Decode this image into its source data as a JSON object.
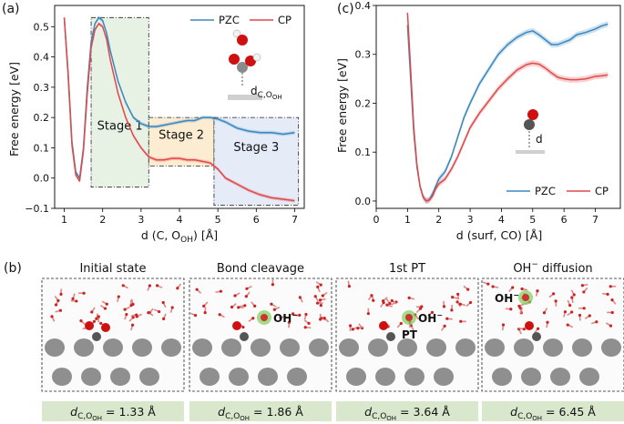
{
  "panel_letters": {
    "a": "(a)",
    "b": "(b)",
    "c": "(c)"
  },
  "chart_data": [
    {
      "type": "line",
      "panel": "(a)",
      "title": "",
      "xlabel": "d (C, O",
      "xlabel_sub": "OH",
      "xlabel_tail": ") [Å]",
      "ylabel": "Free energy [eV]",
      "xlim": [
        0.75,
        7.25
      ],
      "ylim": [
        -0.1,
        0.57
      ],
      "xticks": [
        1,
        2,
        3,
        4,
        5,
        6,
        7
      ],
      "yticks": [
        -0.1,
        0.0,
        0.1,
        0.2,
        0.3,
        0.4,
        0.5
      ],
      "ytick_labels": [
        "−0.1",
        "0.0",
        "0.1",
        "0.2",
        "0.3",
        "0.4",
        "0.5"
      ],
      "legend": "top-right",
      "series": [
        {
          "name": "PZC",
          "color": "#3a87c0",
          "x": [
            1.0,
            1.1,
            1.2,
            1.3,
            1.4,
            1.5,
            1.6,
            1.7,
            1.8,
            1.9,
            2.0,
            2.1,
            2.2,
            2.4,
            2.6,
            2.8,
            3.0,
            3.2,
            3.4,
            3.6,
            3.8,
            4.0,
            4.2,
            4.4,
            4.6,
            4.8,
            5.0,
            5.2,
            5.5,
            5.8,
            6.1,
            6.4,
            6.7,
            7.0
          ],
          "y": [
            0.53,
            0.35,
            0.12,
            0.02,
            0.0,
            0.1,
            0.3,
            0.45,
            0.51,
            0.53,
            0.52,
            0.48,
            0.42,
            0.32,
            0.25,
            0.2,
            0.18,
            0.17,
            0.17,
            0.175,
            0.18,
            0.185,
            0.19,
            0.19,
            0.2,
            0.2,
            0.195,
            0.185,
            0.165,
            0.155,
            0.15,
            0.15,
            0.145,
            0.15
          ]
        },
        {
          "name": "CP",
          "color": "#e0484a",
          "x": [
            1.0,
            1.1,
            1.2,
            1.3,
            1.4,
            1.5,
            1.6,
            1.7,
            1.8,
            1.9,
            2.0,
            2.1,
            2.2,
            2.4,
            2.6,
            2.8,
            3.0,
            3.2,
            3.4,
            3.6,
            3.8,
            4.0,
            4.2,
            4.4,
            4.6,
            4.8,
            5.0,
            5.2,
            5.5,
            5.8,
            6.1,
            6.4,
            6.7,
            7.0
          ],
          "y": [
            0.53,
            0.34,
            0.11,
            0.01,
            -0.01,
            0.09,
            0.28,
            0.43,
            0.49,
            0.51,
            0.5,
            0.46,
            0.39,
            0.28,
            0.2,
            0.14,
            0.1,
            0.07,
            0.06,
            0.06,
            0.065,
            0.065,
            0.06,
            0.06,
            0.055,
            0.05,
            0.03,
            0.0,
            -0.02,
            -0.04,
            -0.055,
            -0.065,
            -0.07,
            -0.075
          ]
        }
      ],
      "stages": [
        {
          "label": "Stage 1",
          "x0": 1.7,
          "x1": 3.2,
          "y0": -0.03,
          "y1": 0.53,
          "color": "#e8f2e4"
        },
        {
          "label": "Stage 2",
          "x0": 3.2,
          "x1": 4.9,
          "y0": 0.04,
          "y1": 0.2,
          "color": "#fcedd2"
        },
        {
          "label": "Stage 3",
          "x0": 4.9,
          "x1": 7.1,
          "y0": -0.09,
          "y1": 0.2,
          "color": "#e5ecf7"
        }
      ],
      "inset_label": "d",
      "inset_label_sub": "C,O",
      "inset_label_subsub": "OH"
    },
    {
      "type": "line",
      "panel": "(c)",
      "title": "",
      "xlabel": "d (surf, CO) [Å]",
      "ylabel": "Free energy [eV]",
      "xlim": [
        0,
        7.8
      ],
      "ylim": [
        -0.015,
        0.4
      ],
      "xticks": [
        0,
        1,
        2,
        3,
        4,
        5,
        6,
        7
      ],
      "yticks": [
        0.0,
        0.1,
        0.2,
        0.3,
        0.4
      ],
      "ytick_labels": [
        "0.0",
        "0.1",
        "0.2",
        "0.3",
        "0.4"
      ],
      "legend": "bottom-right",
      "series": [
        {
          "name": "PZC",
          "color": "#3a87c0",
          "x": [
            1.0,
            1.1,
            1.2,
            1.3,
            1.4,
            1.5,
            1.6,
            1.7,
            1.8,
            1.9,
            2.0,
            2.2,
            2.4,
            2.6,
            2.8,
            3.0,
            3.3,
            3.6,
            3.9,
            4.2,
            4.5,
            4.8,
            5.0,
            5.2,
            5.4,
            5.6,
            5.8,
            6.0,
            6.2,
            6.4,
            6.7,
            7.0,
            7.2,
            7.4
          ],
          "y": [
            0.36,
            0.25,
            0.14,
            0.07,
            0.03,
            0.008,
            0.0,
            0.003,
            0.015,
            0.03,
            0.045,
            0.06,
            0.09,
            0.13,
            0.17,
            0.2,
            0.24,
            0.27,
            0.3,
            0.32,
            0.335,
            0.345,
            0.348,
            0.34,
            0.33,
            0.32,
            0.32,
            0.325,
            0.33,
            0.34,
            0.345,
            0.352,
            0.358,
            0.362
          ]
        },
        {
          "name": "CP",
          "color": "#e0484a",
          "x": [
            1.0,
            1.1,
            1.2,
            1.3,
            1.4,
            1.5,
            1.6,
            1.7,
            1.8,
            1.9,
            2.0,
            2.2,
            2.4,
            2.6,
            2.8,
            3.0,
            3.3,
            3.6,
            3.9,
            4.2,
            4.5,
            4.8,
            5.0,
            5.2,
            5.4,
            5.6,
            5.8,
            6.0,
            6.2,
            6.4,
            6.7,
            7.0,
            7.2,
            7.4
          ],
          "y": [
            0.385,
            0.27,
            0.15,
            0.075,
            0.03,
            0.008,
            0.0,
            0.002,
            0.01,
            0.025,
            0.035,
            0.045,
            0.065,
            0.09,
            0.12,
            0.15,
            0.18,
            0.205,
            0.23,
            0.25,
            0.268,
            0.279,
            0.282,
            0.28,
            0.272,
            0.262,
            0.253,
            0.25,
            0.248,
            0.248,
            0.25,
            0.255,
            0.256,
            0.258
          ]
        }
      ],
      "inset_label": "d"
    }
  ],
  "panel_b": {
    "snapshots": [
      {
        "title": "Initial state",
        "d_label": "d",
        "d_sub": "C,O",
        "d_subsub": "OH",
        "value": " = 1.33 Å",
        "ion": "",
        "ion_sup": "",
        "pt": ""
      },
      {
        "title": "Bond cleavage",
        "d_label": "d",
        "d_sub": "C,O",
        "d_subsub": "OH",
        "value": " = 1.86 Å",
        "ion": "OH",
        "ion_sup": "−",
        "pt": ""
      },
      {
        "title": "1st PT",
        "d_label": "d",
        "d_sub": "C,O",
        "d_subsub": "OH",
        "value": " = 3.64 Å",
        "ion": "OH",
        "ion_sup": "−",
        "pt": "PT"
      },
      {
        "title": "OH",
        "title_sup": "−",
        "title_tail": " diffusion",
        "d_label": "d",
        "d_sub": "C,O",
        "d_subsub": "OH",
        "value": " = 6.45 Å",
        "ion": "OH",
        "ion_sup": "−",
        "pt": ""
      }
    ]
  }
}
